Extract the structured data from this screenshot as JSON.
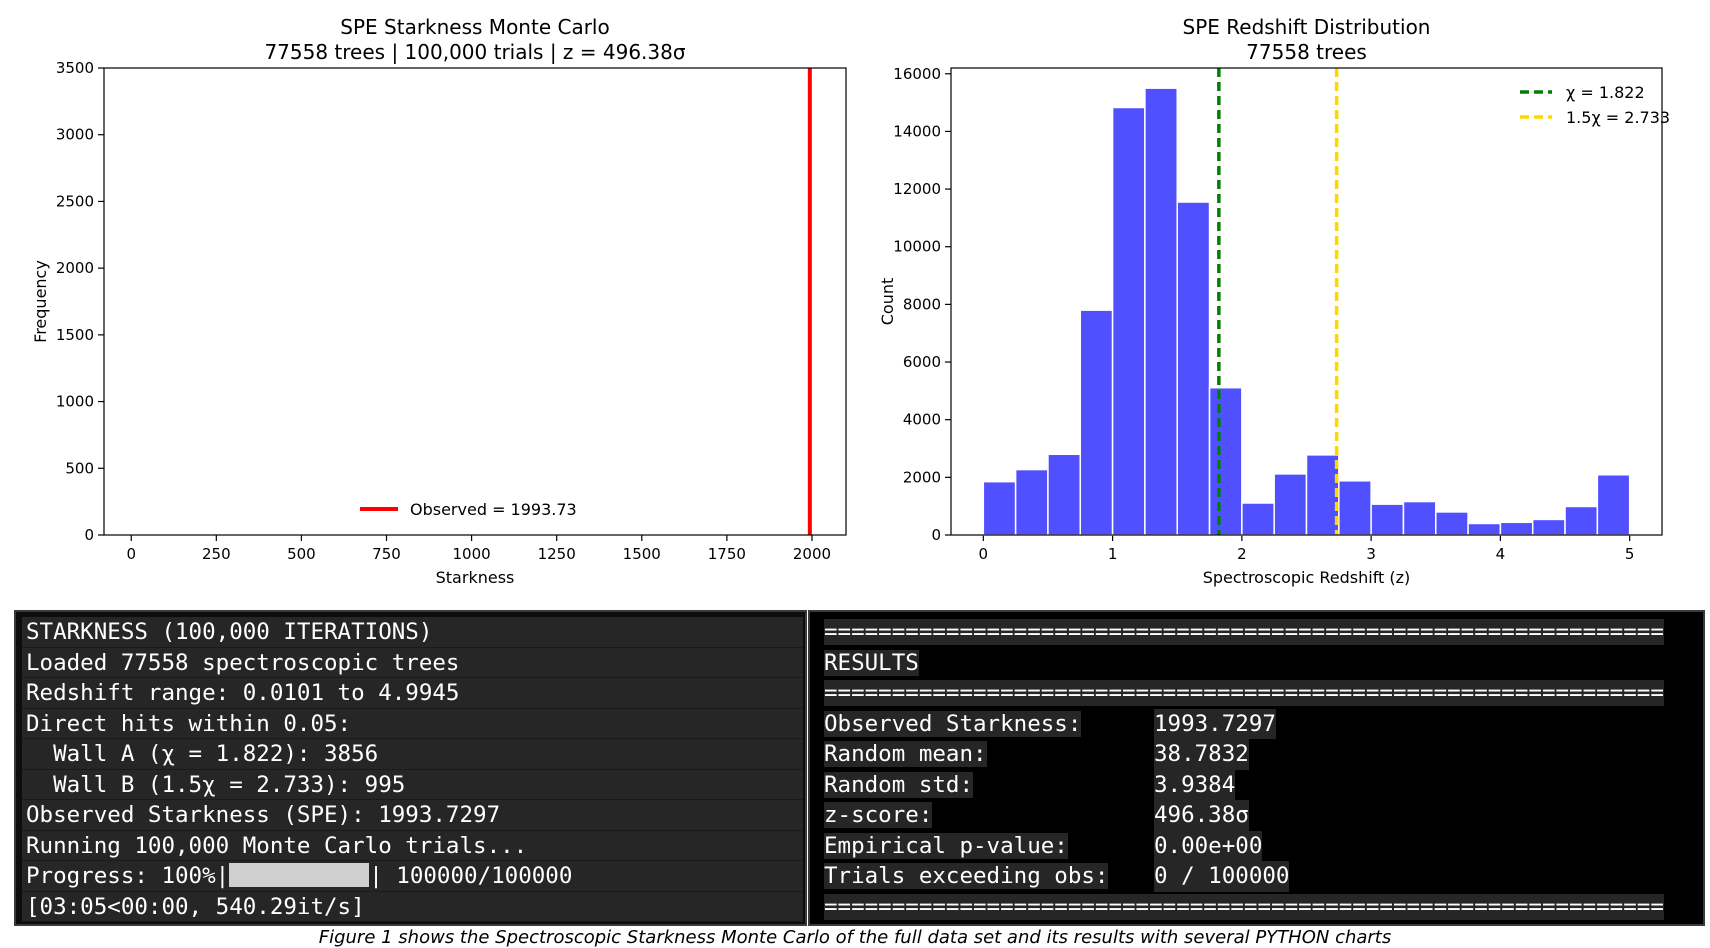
{
  "chart_data": [
    {
      "type": "line",
      "title": "SPE Starkness Monte Carlo",
      "subtitle": "77558 trees | 100,000 trials | z = 496.38σ",
      "xlabel": "Starkness",
      "ylabel": "Frequency",
      "xlim": [
        -80,
        2100
      ],
      "ylim": [
        0,
        3500
      ],
      "xticks": [
        0,
        250,
        500,
        750,
        1000,
        1250,
        1500,
        1750,
        2000
      ],
      "yticks": [
        0,
        500,
        1000,
        1500,
        2000,
        2500,
        3000,
        3500
      ],
      "series": [
        {
          "name": "Observed = 1993.73",
          "x": 1993.73,
          "color": "#ff0000",
          "style": "vline"
        }
      ],
      "legend": "bottom-center",
      "grid": false
    },
    {
      "type": "bar",
      "title": "SPE Redshift Distribution",
      "subtitle": "77558 trees",
      "xlabel": "Spectroscopic Redshift (z)",
      "ylabel": "Count",
      "xlim": [
        -0.25,
        5.25
      ],
      "ylim": [
        0,
        16200
      ],
      "xticks": [
        0,
        1,
        2,
        3,
        4,
        5
      ],
      "yticks": [
        0,
        2000,
        4000,
        6000,
        8000,
        10000,
        12000,
        14000,
        16000
      ],
      "bin_edges": [
        0,
        0.25,
        0.5,
        0.75,
        1.0,
        1.25,
        1.5,
        1.75,
        2.0,
        2.25,
        2.5,
        2.75,
        3.0,
        3.25,
        3.5,
        3.75,
        4.0,
        4.25,
        4.5,
        4.75,
        5.0
      ],
      "values": [
        1850,
        2270,
        2800,
        7800,
        14830,
        15500,
        11550,
        5110,
        1110,
        2120,
        2780,
        1880,
        1070,
        1160,
        800,
        400,
        440,
        540,
        990,
        2090
      ],
      "bar_color": "#5050ff",
      "series": [
        {
          "name": "χ = 1.822",
          "x": 1.822,
          "color": "#008000",
          "style": "dashed-vline"
        },
        {
          "name": "1.5χ = 2.733",
          "x": 2.733,
          "color": "#ffd700",
          "style": "dashed-vline"
        }
      ],
      "legend": "top-right",
      "grid": false
    }
  ],
  "terminal_left": [
    "STARKNESS (100,000 ITERATIONS)",
    "Loaded 77558 spectroscopic trees",
    "Redshift range: 0.0101 to 4.9945",
    "Direct hits within 0.05:",
    "  Wall A (χ = 1.822): 3856",
    "  Wall B (1.5χ = 2.733): 995",
    "Observed Starkness (SPE): 1993.7297",
    "Running 100,000 Monte Carlo trials..."
  ],
  "progress": {
    "prefix": "Progress: 100%|",
    "fraction": 1.0,
    "suffix": "| 100000/100000",
    "timing": "[03:05<00:00, 540.29it/s]"
  },
  "terminal_right": {
    "rule": "==============================================================",
    "heading": "RESULTS",
    "rows": [
      {
        "key": "Observed Starkness:",
        "value": "1993.7297"
      },
      {
        "key": "Random mean:",
        "value": "38.7832"
      },
      {
        "key": "Random std:",
        "value": "3.9384"
      },
      {
        "key": "z-score:",
        "value": "496.38σ"
      },
      {
        "key": "Empirical p-value:",
        "value": "0.00e+00"
      },
      {
        "key": "Trials exceeding obs:",
        "value": "0 / 100000"
      }
    ]
  },
  "caption": "Figure 1 shows the Spectroscopic Starkness Monte Carlo of the full data set and its results with several PYTHON charts"
}
